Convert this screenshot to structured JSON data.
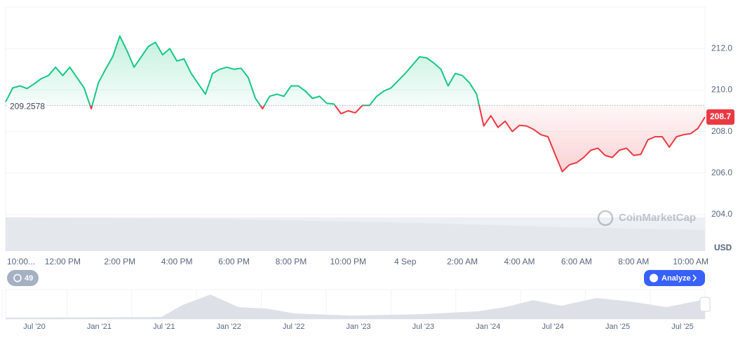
{
  "chart_data": {
    "type": "line",
    "categories": [
      "10:00...",
      null,
      null,
      null,
      null,
      null,
      null,
      null,
      "12:00 PM",
      null,
      null,
      null,
      null,
      null,
      null,
      null,
      "2:00 PM",
      null,
      null,
      null,
      null,
      null,
      null,
      null,
      "4:00 PM",
      null,
      null,
      null,
      null,
      null,
      null,
      null,
      "6:00 PM",
      null,
      null,
      null,
      null,
      null,
      null,
      null,
      "8:00 PM",
      null,
      null,
      null,
      null,
      null,
      null,
      null,
      "10:00 PM",
      null,
      null,
      null,
      null,
      null,
      null,
      null,
      "4 Sep",
      null,
      null,
      null,
      null,
      null,
      null,
      null,
      "2:00 AM",
      null,
      null,
      null,
      null,
      null,
      null,
      null,
      "4:00 AM",
      null,
      null,
      null,
      null,
      null,
      null,
      null,
      "6:00 AM",
      null,
      null,
      null,
      null,
      null,
      null,
      null,
      "8:00 AM",
      null,
      null,
      null,
      null,
      null,
      null,
      null,
      "10:00 AM",
      null,
      null
    ],
    "values": [
      209.43,
      210.1,
      210.2,
      210.07,
      210.3,
      210.55,
      210.7,
      211.1,
      210.7,
      211.1,
      210.6,
      210.1,
      209.1,
      210.35,
      211.0,
      211.6,
      212.6,
      211.9,
      211.1,
      211.6,
      212.1,
      212.3,
      211.7,
      212.0,
      211.4,
      211.5,
      210.8,
      210.3,
      209.8,
      210.8,
      211.0,
      211.1,
      211.0,
      211.05,
      210.6,
      209.6,
      209.1,
      209.7,
      209.8,
      209.7,
      210.2,
      210.2,
      209.95,
      209.6,
      209.7,
      209.36,
      209.33,
      208.86,
      209.0,
      208.9,
      209.26,
      209.26,
      209.7,
      209.95,
      210.1,
      210.45,
      210.8,
      211.2,
      211.6,
      211.55,
      211.3,
      211.0,
      210.2,
      210.8,
      210.7,
      210.35,
      209.8,
      208.27,
      208.76,
      208.2,
      208.5,
      208.0,
      208.3,
      208.27,
      208.1,
      207.85,
      207.75,
      206.9,
      206.07,
      206.4,
      206.5,
      206.75,
      207.1,
      207.2,
      206.85,
      206.75,
      207.1,
      207.2,
      206.85,
      206.9,
      207.6,
      207.75,
      207.75,
      207.25,
      207.75,
      207.85,
      207.9,
      208.15,
      208.7
    ],
    "baseline": 209.2578,
    "up_color": "#16c784",
    "down_color": "#ea3943",
    "ylim": [
      204,
      214
    ],
    "yticks": [
      {
        "value": 204,
        "label": "204.0"
      },
      {
        "value": 206,
        "label": "206.0"
      },
      {
        "value": 208,
        "label": "208.0"
      },
      {
        "value": 210,
        "label": "210.0"
      },
      {
        "value": 212,
        "label": "212.0"
      }
    ],
    "y_unit": "USD",
    "grid": true,
    "watermark": "CoinMarketCap",
    "badge": "49",
    "button": "Analyze",
    "navigator_labels": [
      "Jul '20",
      "Jan '21",
      "Jul '21",
      "Jan '22",
      "Jul '22",
      "Jan '23",
      "Jul '23",
      "Jan '24",
      "Jul '24",
      "Jan '25",
      "Jul '25"
    ]
  }
}
